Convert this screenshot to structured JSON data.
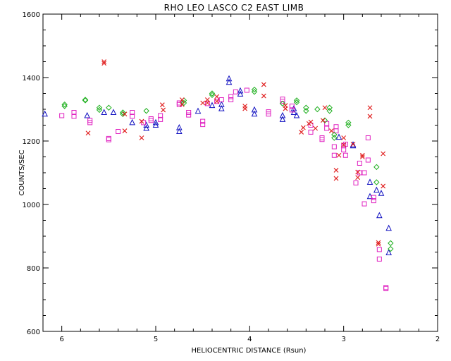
{
  "chart_data": {
    "type": "scatter",
    "title": "RHO LEO   LASCO C2  EAST LIMB",
    "xlabel": "HELIOCENTRIC DISTANCE (Rsun)",
    "ylabel": "COUNTS/SEC",
    "xlim": [
      6.2,
      2.0
    ],
    "ylim": [
      600,
      1600
    ],
    "x_ticks": [
      6,
      5,
      4,
      3,
      2
    ],
    "y_ticks": [
      600,
      800,
      1000,
      1200,
      1400,
      1600
    ],
    "x_minor_step": 0.2,
    "y_minor_step": 50,
    "grid": false,
    "colors": {
      "x": "#e02020",
      "square": "#e020c0",
      "triangle": "#1010c0",
      "diamond": "#20b020",
      "axes": "#000000"
    },
    "series": [
      {
        "marker": "triangle",
        "color": "#1010c0",
        "points": [
          [
            6.18,
            1285
          ],
          [
            5.73,
            1280
          ],
          [
            5.55,
            1290
          ],
          [
            5.45,
            1290
          ],
          [
            5.25,
            1258
          ],
          [
            5.1,
            1240
          ],
          [
            5.1,
            1250
          ],
          [
            5.0,
            1250
          ],
          [
            5.0,
            1258
          ],
          [
            4.75,
            1242
          ],
          [
            4.75,
            1230
          ],
          [
            4.55,
            1294
          ],
          [
            4.4,
            1312
          ],
          [
            4.3,
            1302
          ],
          [
            4.3,
            1315
          ],
          [
            4.22,
            1385
          ],
          [
            4.22,
            1396
          ],
          [
            4.1,
            1348
          ],
          [
            4.1,
            1358
          ],
          [
            3.95,
            1285
          ],
          [
            3.95,
            1298
          ],
          [
            3.65,
            1268
          ],
          [
            3.65,
            1280
          ],
          [
            3.53,
            1290
          ],
          [
            3.53,
            1302
          ],
          [
            3.5,
            1280
          ],
          [
            3.05,
            1212
          ],
          [
            2.9,
            1185
          ],
          [
            2.9,
            1188
          ],
          [
            2.72,
            1070
          ],
          [
            2.72,
            1025
          ],
          [
            2.65,
            1045
          ],
          [
            2.62,
            965
          ],
          [
            2.6,
            1035
          ],
          [
            2.52,
            925
          ],
          [
            2.52,
            848
          ]
        ]
      },
      {
        "marker": "square",
        "color": "#e020c0",
        "points": [
          [
            6.0,
            1280
          ],
          [
            5.87,
            1290
          ],
          [
            5.87,
            1278
          ],
          [
            5.7,
            1258
          ],
          [
            5.7,
            1265
          ],
          [
            5.5,
            1204
          ],
          [
            5.5,
            1208
          ],
          [
            5.4,
            1230
          ],
          [
            5.25,
            1290
          ],
          [
            5.25,
            1278
          ],
          [
            5.13,
            1258
          ],
          [
            5.05,
            1265
          ],
          [
            5.05,
            1270
          ],
          [
            4.95,
            1280
          ],
          [
            4.95,
            1268
          ],
          [
            4.75,
            1315
          ],
          [
            4.75,
            1320
          ],
          [
            4.65,
            1282
          ],
          [
            4.65,
            1290
          ],
          [
            4.5,
            1262
          ],
          [
            4.5,
            1252
          ],
          [
            4.45,
            1318
          ],
          [
            4.35,
            1325
          ],
          [
            4.3,
            1330
          ],
          [
            4.2,
            1340
          ],
          [
            4.2,
            1330
          ],
          [
            4.15,
            1355
          ],
          [
            4.03,
            1360
          ],
          [
            3.8,
            1292
          ],
          [
            3.8,
            1285
          ],
          [
            3.65,
            1332
          ],
          [
            3.65,
            1325
          ],
          [
            3.55,
            1310
          ],
          [
            3.55,
            1298
          ],
          [
            3.35,
            1228
          ],
          [
            3.35,
            1250
          ],
          [
            3.23,
            1210
          ],
          [
            3.23,
            1205
          ],
          [
            3.18,
            1255
          ],
          [
            3.18,
            1240
          ],
          [
            3.08,
            1245
          ],
          [
            3.08,
            1232
          ],
          [
            3.1,
            1182
          ],
          [
            3.1,
            1155
          ],
          [
            3.0,
            1185
          ],
          [
            3.0,
            1172
          ],
          [
            2.98,
            1155
          ],
          [
            2.98,
            1190
          ],
          [
            2.87,
            1068
          ],
          [
            2.83,
            1100
          ],
          [
            2.83,
            1130
          ],
          [
            2.78,
            1002
          ],
          [
            2.78,
            1100
          ],
          [
            2.74,
            1140
          ],
          [
            2.74,
            1210
          ],
          [
            2.68,
            1012
          ],
          [
            2.68,
            1022
          ],
          [
            2.62,
            858
          ],
          [
            2.62,
            828
          ],
          [
            2.55,
            735
          ],
          [
            2.55,
            738
          ]
        ]
      },
      {
        "marker": "diamond",
        "color": "#20b020",
        "points": [
          [
            5.97,
            1310
          ],
          [
            5.97,
            1315
          ],
          [
            5.75,
            1328
          ],
          [
            5.75,
            1330
          ],
          [
            5.6,
            1298
          ],
          [
            5.6,
            1305
          ],
          [
            5.5,
            1305
          ],
          [
            5.35,
            1285
          ],
          [
            5.35,
            1290
          ],
          [
            5.1,
            1295
          ],
          [
            4.7,
            1320
          ],
          [
            4.7,
            1328
          ],
          [
            4.4,
            1350
          ],
          [
            4.4,
            1345
          ],
          [
            3.95,
            1355
          ],
          [
            3.95,
            1362
          ],
          [
            3.65,
            1318
          ],
          [
            3.5,
            1328
          ],
          [
            3.5,
            1322
          ],
          [
            3.4,
            1305
          ],
          [
            3.4,
            1295
          ],
          [
            3.28,
            1300
          ],
          [
            3.2,
            1265
          ],
          [
            3.15,
            1295
          ],
          [
            3.15,
            1305
          ],
          [
            3.1,
            1210
          ],
          [
            3.1,
            1220
          ],
          [
            2.95,
            1250
          ],
          [
            2.95,
            1258
          ],
          [
            2.65,
            1070
          ],
          [
            2.65,
            1118
          ],
          [
            2.5,
            878
          ],
          [
            2.5,
            860
          ]
        ]
      },
      {
        "marker": "x",
        "color": "#e02020",
        "points": [
          [
            5.72,
            1225
          ],
          [
            5.55,
            1450
          ],
          [
            5.55,
            1445
          ],
          [
            5.33,
            1285
          ],
          [
            5.33,
            1232
          ],
          [
            5.15,
            1210
          ],
          [
            5.15,
            1262
          ],
          [
            4.93,
            1314
          ],
          [
            4.92,
            1298
          ],
          [
            4.72,
            1330
          ],
          [
            4.72,
            1315
          ],
          [
            4.5,
            1320
          ],
          [
            4.45,
            1330
          ],
          [
            4.45,
            1320
          ],
          [
            4.35,
            1340
          ],
          [
            4.35,
            1325
          ],
          [
            4.05,
            1310
          ],
          [
            4.05,
            1302
          ],
          [
            3.85,
            1342
          ],
          [
            3.85,
            1378
          ],
          [
            3.62,
            1312
          ],
          [
            3.62,
            1302
          ],
          [
            3.45,
            1228
          ],
          [
            3.43,
            1242
          ],
          [
            3.37,
            1255
          ],
          [
            3.35,
            1260
          ],
          [
            3.3,
            1240
          ],
          [
            3.22,
            1265
          ],
          [
            3.2,
            1305
          ],
          [
            3.13,
            1232
          ],
          [
            3.08,
            1108
          ],
          [
            3.08,
            1082
          ],
          [
            3.05,
            1155
          ],
          [
            3.0,
            1210
          ],
          [
            3.0,
            1188
          ],
          [
            2.9,
            1190
          ],
          [
            2.85,
            1102
          ],
          [
            2.85,
            1085
          ],
          [
            2.8,
            1155
          ],
          [
            2.8,
            1150
          ],
          [
            2.72,
            1305
          ],
          [
            2.72,
            1278
          ],
          [
            2.63,
            880
          ],
          [
            2.63,
            875
          ],
          [
            2.58,
            1160
          ],
          [
            2.58,
            1058
          ]
        ]
      }
    ]
  }
}
